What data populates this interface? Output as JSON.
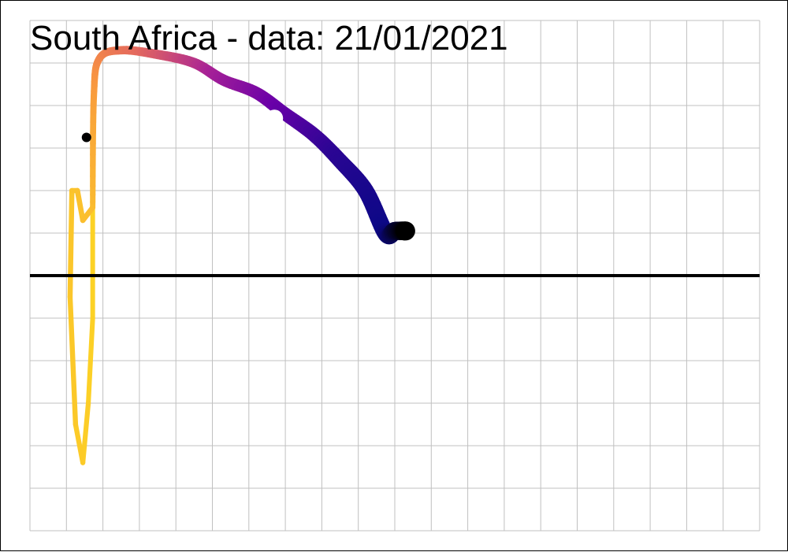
{
  "chart_data": {
    "type": "line",
    "title": "South Africa  - data: 21/01/2021",
    "xlabel": "",
    "ylabel": "",
    "grid": true,
    "legend": "none",
    "xlim": [
      0,
      20
    ],
    "ylim": [
      -6,
      6
    ],
    "reference_line_y": 0,
    "series": [
      {
        "points": [
          [
            1.72,
            1.6
          ],
          [
            1.75,
            4.2
          ],
          [
            1.9,
            5.1
          ],
          [
            2.5,
            5.3
          ],
          [
            3.5,
            5.2
          ],
          [
            4.5,
            5.0
          ],
          [
            5.3,
            4.6
          ],
          [
            6.2,
            4.3
          ],
          [
            7.0,
            3.8
          ],
          [
            7.8,
            3.3
          ],
          [
            8.5,
            2.7
          ],
          [
            9.2,
            2.0
          ],
          [
            9.75,
            1.0
          ],
          [
            10.0,
            1.05
          ],
          [
            10.3,
            1.05
          ]
        ],
        "color_scale": [
          "#fcd225",
          "#f89441",
          "#e56b5d",
          "#a82296",
          "#6a00a8",
          "#2c0594",
          "#0d0887",
          "#000000"
        ]
      }
    ],
    "markers": [
      {
        "x": 1.55,
        "y": 3.25,
        "color": "#000000"
      },
      {
        "x": 6.7,
        "y": 3.7,
        "color": "#ffffff"
      }
    ]
  }
}
